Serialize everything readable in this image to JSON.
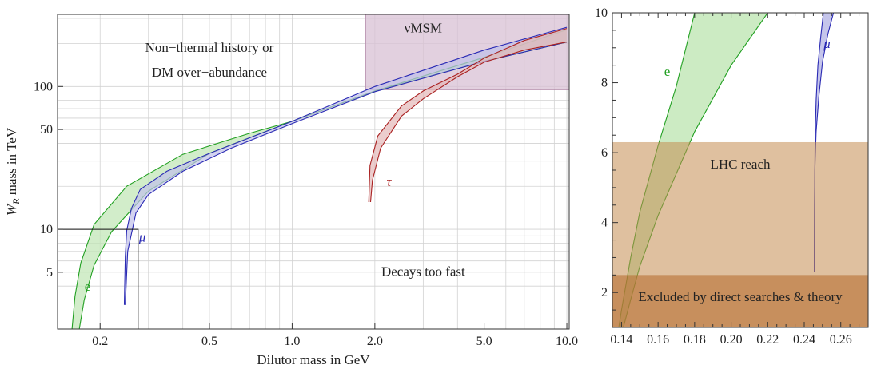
{
  "chart_data": [
    {
      "type": "area",
      "xlabel": "Dilutor mass in GeV",
      "ylabel_main": "W",
      "ylabel_sub": "R",
      "ylabel_rest": " mass in TeV",
      "xscale": "log",
      "yscale": "log",
      "xlim": [
        0.14,
        10.2
      ],
      "ylim": [
        2.0,
        320
      ],
      "grid": true,
      "x_ticks": [
        {
          "value": 0.2,
          "label": "0.2"
        },
        {
          "value": 0.5,
          "label": "0.5"
        },
        {
          "value": 1.0,
          "label": "1.0"
        },
        {
          "value": 2.0,
          "label": "2.0"
        },
        {
          "value": 5.0,
          "label": "5.0"
        },
        {
          "value": 10.0,
          "label": "10.0"
        }
      ],
      "y_ticks": [
        {
          "value": 5,
          "label": "5"
        },
        {
          "value": 10,
          "label": "10"
        },
        {
          "value": 50,
          "label": "50"
        },
        {
          "value": 100,
          "label": "100"
        }
      ],
      "regions": [
        {
          "name": "νMSM",
          "x_from": 1.85,
          "x_to": 10.2,
          "y_from": 95,
          "y_to": 320,
          "color": "#d8c0d4",
          "edge": "#b48aaa"
        }
      ],
      "annotations": [
        {
          "id": "nonthermal1",
          "text": "Non−thermal history or",
          "x": 0.5,
          "y": 175
        },
        {
          "id": "nonthermal2",
          "text": "DM over−abundance",
          "x": 0.5,
          "y": 117
        },
        {
          "id": "decays",
          "text": "Decays too fast",
          "x": 3.0,
          "y": 4.7
        },
        {
          "id": "numsm",
          "text": "νMSM",
          "x": 3.0,
          "y": 240
        }
      ],
      "series": [
        {
          "name": "e",
          "color": "#22a022",
          "fill": "#bfe6b4",
          "label_pos": {
            "x": 0.18,
            "y": 3.7
          },
          "lower": {
            "x": [
              0.168,
              0.175,
              0.19,
              0.22,
              0.3,
              0.5,
              1.0,
              2.0,
              5.0,
              10.0
            ],
            "y": [
              2.0,
              3.2,
              5.6,
              9.6,
              18.5,
              34,
              57,
              93,
              150,
              205
            ]
          },
          "upper": {
            "x": [
              0.158,
              0.162,
              0.17,
              0.19,
              0.25,
              0.4,
              0.7,
              1.0,
              2.0,
              5.0,
              10.0
            ],
            "y": [
              2.0,
              3.4,
              5.8,
              10.8,
              20,
              33.5,
              47,
              57,
              93,
              160,
              250
            ]
          }
        },
        {
          "name": "μ",
          "color": "#2a2ab4",
          "fill": "#c0c0ea",
          "label_pos": {
            "x": 0.285,
            "y": 8.2
          },
          "lower": {
            "x": [
              0.247,
              0.252,
              0.27,
              0.3,
              0.4,
              0.6,
              1.0,
              2.0,
              5.0,
              10.0
            ],
            "y": [
              2.95,
              7.0,
              13.0,
              17.5,
              25.5,
              37,
              55,
              92,
              150,
              205
            ]
          },
          "upper": {
            "x": [
              0.245,
              0.247,
              0.25,
              0.26,
              0.28,
              0.35,
              0.5,
              1.0,
              2.0,
              5.0,
              10.0
            ],
            "y": [
              2.95,
              6.5,
              9.8,
              14.0,
              19.0,
              25.5,
              34,
              57,
              100,
              180,
              260
            ]
          }
        },
        {
          "name": "τ",
          "color": "#aa2222",
          "fill": "#e4b8b8",
          "label_pos": {
            "x": 2.25,
            "y": 20
          },
          "lower": {
            "x": [
              1.93,
              1.96,
              2.1,
              2.5,
              3.0,
              4.0,
              5.0,
              7.0,
              10.0
            ],
            "y": [
              15.5,
              22,
              37,
              62,
              82,
              117,
              148,
              180,
              205
            ]
          },
          "upper": {
            "x": [
              1.9,
              1.92,
              2.05,
              2.5,
              3.0,
              4.0,
              5.0,
              7.0,
              10.0
            ],
            "y": [
              15.5,
              28,
              45,
              73,
              93,
              122,
              158,
              210,
              255
            ]
          }
        }
      ],
      "reference_lines": [
        {
          "points": [
            [
              0.14,
              10
            ],
            [
              0.275,
              10
            ],
            [
              0.275,
              2.0
            ]
          ]
        }
      ]
    },
    {
      "type": "area",
      "xlim": [
        0.135,
        0.275
      ],
      "ylim": [
        1.0,
        10.0
      ],
      "grid": false,
      "x_ticks": [
        {
          "value": 0.14,
          "label": "0.14"
        },
        {
          "value": 0.16,
          "label": "0.16"
        },
        {
          "value": 0.18,
          "label": "0.18"
        },
        {
          "value": 0.2,
          "label": "0.20"
        },
        {
          "value": 0.22,
          "label": "0.22"
        },
        {
          "value": 0.24,
          "label": "0.24"
        },
        {
          "value": 0.26,
          "label": "0.26"
        }
      ],
      "y_ticks": [
        {
          "value": 2,
          "label": "2"
        },
        {
          "value": 4,
          "label": "4"
        },
        {
          "value": 6,
          "label": "6"
        },
        {
          "value": 8,
          "label": "8"
        },
        {
          "value": 10,
          "label": "10"
        }
      ],
      "regions": [
        {
          "name": "LHC reach",
          "x_from": 0.135,
          "x_to": 0.275,
          "y_from": 1.0,
          "y_to": 6.3,
          "color": "rgba(196,140,80,0.55)"
        },
        {
          "name": "Excluded by direct searches & theory",
          "x_from": 0.135,
          "x_to": 0.275,
          "y_from": 1.0,
          "y_to": 2.5,
          "color": "rgba(184,110,50,0.6)"
        }
      ],
      "annotations": [
        {
          "id": "lhc",
          "text": "LHC reach",
          "x": 0.205,
          "y": 5.55
        },
        {
          "id": "excl",
          "text": "Excluded by direct searches & theory",
          "x": 0.205,
          "y": 1.75
        }
      ],
      "series": [
        {
          "name": "e",
          "color": "#22a022",
          "fill": "#bfe6b4",
          "label_pos": {
            "x": 0.165,
            "y": 8.2
          },
          "lower": {
            "x": [
              0.1385,
              0.14,
              0.145,
              0.15,
              0.16,
              0.17,
              0.18
            ],
            "y": [
              1.0,
              1.5,
              3.0,
              4.3,
              6.2,
              7.9,
              10.0
            ]
          },
          "upper": {
            "x": [
              0.141,
              0.145,
              0.15,
              0.16,
              0.18,
              0.2,
              0.22
            ],
            "y": [
              1.0,
              1.8,
              2.75,
              4.2,
              6.6,
              8.5,
              10.0
            ]
          }
        },
        {
          "name": "μ",
          "color": "#2a2ab4",
          "fill": "#b6b6e6",
          "label_pos": {
            "x": 0.2525,
            "y": 9.0
          },
          "lower": {
            "x": [
              0.2455,
              0.2456,
              0.246,
              0.2465,
              0.2475,
              0.249,
              0.2505
            ],
            "y": [
              2.6,
              4.5,
              6.5,
              7.5,
              8.5,
              9.3,
              10.0
            ]
          },
          "upper": {
            "x": [
              0.2455,
              0.2458,
              0.2465,
              0.248,
              0.25,
              0.253,
              0.256
            ],
            "y": [
              2.6,
              5.5,
              6.6,
              7.6,
              8.6,
              9.4,
              10.0
            ]
          }
        }
      ]
    }
  ]
}
